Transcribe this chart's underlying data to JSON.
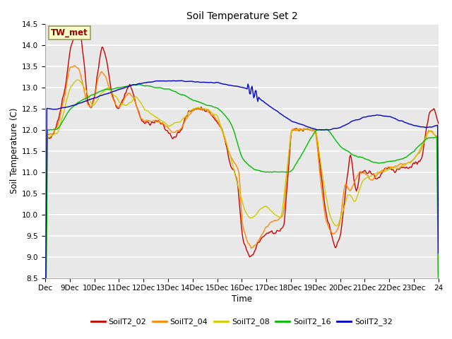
{
  "title": "Soil Temperature Set 2",
  "xlabel": "Time",
  "ylabel": "Soil Temperature (C)",
  "ylim": [
    8.5,
    14.5
  ],
  "tick_labels": [
    "Dec",
    "9Dec",
    "10Dec",
    "11Dec",
    "12Dec",
    "13Dec",
    "14Dec",
    "15Dec",
    "16Dec",
    "17Dec",
    "18Dec",
    "19Dec",
    "20Dec",
    "21Dec",
    "22Dec",
    "23Dec",
    "24"
  ],
  "series_colors": {
    "SoilT2_02": "#cc0000",
    "SoilT2_04": "#ff8800",
    "SoilT2_08": "#cccc00",
    "SoilT2_16": "#00bb00",
    "SoilT2_32": "#0000cc"
  },
  "annotation_text": "TW_met",
  "annotation_color": "#990000",
  "annotation_bg": "#ffffcc",
  "annotation_border": "#999966",
  "fig_bg": "#ffffff",
  "plot_bg": "#e8e8e8",
  "grid_color": "#ffffff",
  "linewidth": 1.0
}
